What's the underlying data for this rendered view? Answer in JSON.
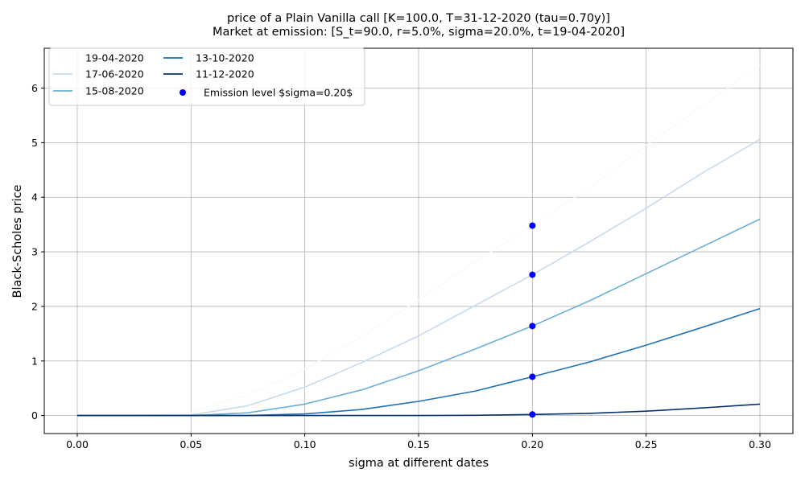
{
  "chart_data": {
    "type": "line",
    "title": "price of a Plain Vanilla call [K=100.0, T=31-12-2020 (tau=0.70y)]",
    "subtitle": "Market at emission: [S_t=90.0, r=5.0%, sigma=20.0%, t=19-04-2020]",
    "xlabel": "sigma at different dates",
    "ylabel": "Black-Scholes price",
    "xlim": [
      -0.0145,
      0.3145
    ],
    "ylim": [
      -0.33,
      6.73
    ],
    "xticks": [
      "0.00",
      "0.05",
      "0.10",
      "0.15",
      "0.20",
      "0.25",
      "0.30"
    ],
    "yticks": [
      "0",
      "1",
      "2",
      "3",
      "4",
      "5",
      "6"
    ],
    "grid": true,
    "legend_location": "top-left",
    "x": [
      0.0,
      0.025,
      0.05,
      0.075,
      0.1,
      0.125,
      0.15,
      0.175,
      0.2,
      0.225,
      0.25,
      0.275,
      0.3
    ],
    "series": [
      {
        "name": "19-04-2020",
        "color": "#f7fbff",
        "values": [
          0.0,
          0.0,
          0.05,
          0.38,
          0.85,
          1.45,
          2.12,
          2.82,
          3.48,
          4.18,
          4.95,
          5.68,
          6.42
        ]
      },
      {
        "name": "17-06-2020",
        "color": "#c6dbef",
        "values": [
          0.0,
          0.0,
          0.01,
          0.18,
          0.52,
          0.97,
          1.46,
          2.02,
          2.58,
          3.18,
          3.8,
          4.45,
          5.06
        ]
      },
      {
        "name": "15-08-2020",
        "color": "#6baed6",
        "values": [
          0.0,
          0.0,
          0.0,
          0.05,
          0.21,
          0.47,
          0.82,
          1.22,
          1.64,
          2.1,
          2.6,
          3.1,
          3.6
        ]
      },
      {
        "name": "13-10-2020",
        "color": "#2171b5",
        "values": [
          0.0,
          0.0,
          0.0,
          0.0,
          0.03,
          0.11,
          0.26,
          0.45,
          0.71,
          0.98,
          1.29,
          1.62,
          1.96
        ]
      },
      {
        "name": "11-12-2020",
        "color": "#08306b",
        "values": [
          0.0,
          0.0,
          0.0,
          0.0,
          0.0,
          0.0,
          0.0,
          0.005,
          0.02,
          0.04,
          0.08,
          0.14,
          0.21
        ]
      }
    ],
    "emission_points": {
      "label": "Emission level $sigma=0.20$",
      "color": "#0000ff",
      "x": 0.2,
      "values": [
        3.48,
        2.58,
        1.64,
        0.71,
        0.02
      ]
    }
  }
}
